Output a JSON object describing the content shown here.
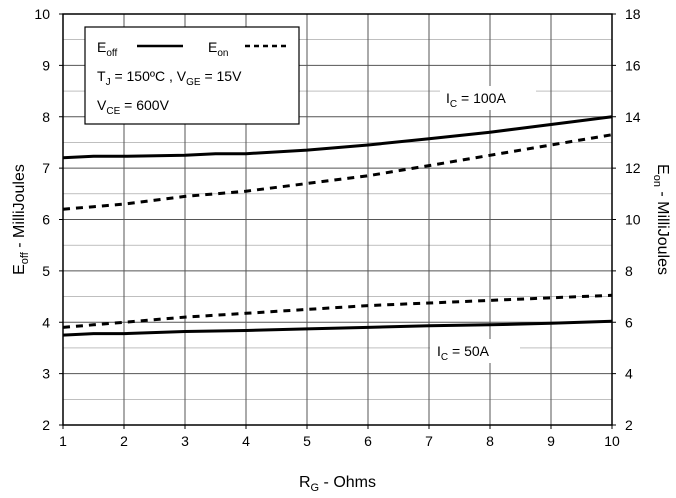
{
  "chart_data": {
    "type": "line",
    "xlabel": "R",
    "xlabel_sub": "G",
    "xlabel_rest": " - Ohms",
    "ylabel_left": "E",
    "ylabel_left_sub": "off",
    "ylabel_left_rest": " - MilliJoules",
    "ylabel_right": "E",
    "ylabel_right_sub": "on",
    "ylabel_right_rest": " - MilliJoules",
    "xlim": [
      1,
      10
    ],
    "ylim_left": [
      2,
      10
    ],
    "ylim_right": [
      2,
      18
    ],
    "x_ticks": [
      "1",
      "2",
      "3",
      "4",
      "5",
      "6",
      "7",
      "8",
      "9",
      "10"
    ],
    "y_left_ticks": [
      "2",
      "3",
      "4",
      "5",
      "6",
      "7",
      "8",
      "9",
      "10"
    ],
    "y_right_ticks": [
      "2",
      "4",
      "6",
      "8",
      "10",
      "12",
      "14",
      "16",
      "18"
    ],
    "grid": true,
    "legend_position": "top-left",
    "legend": {
      "eoff_label": "E",
      "eoff_sub": "off",
      "eon_label": "E",
      "eon_sub": "on",
      "cond1_a": "T",
      "cond1_a_sub": "J",
      "cond1_b": " = 150ºC ,  V",
      "cond1_b_sub": "GE",
      "cond1_c": " = 15V",
      "cond2_a": "V",
      "cond2_a_sub": "CE",
      "cond2_b": " = 600V"
    },
    "annotations": {
      "ic100_a": "I",
      "ic100_sub": "C",
      "ic100_b": " = 100A",
      "ic50_a": "I",
      "ic50_sub": "C",
      "ic50_b": " = 50A"
    },
    "series": [
      {
        "name": "Eoff",
        "axis": "left",
        "style": "solid",
        "group": "IC = 100A",
        "x": [
          1,
          1.5,
          2,
          3,
          3.5,
          4,
          5,
          6,
          7,
          8,
          9,
          10
        ],
        "y": [
          7.2,
          7.23,
          7.23,
          7.25,
          7.28,
          7.28,
          7.35,
          7.45,
          7.57,
          7.7,
          7.85,
          8.0
        ]
      },
      {
        "name": "Eon",
        "axis": "right",
        "style": "dashed",
        "group": "IC = 100A",
        "x": [
          1,
          1.5,
          2,
          3,
          3.5,
          4,
          5,
          6,
          7,
          8,
          9,
          10
        ],
        "y": [
          10.4,
          10.5,
          10.6,
          10.9,
          11.0,
          11.1,
          11.4,
          11.7,
          12.1,
          12.5,
          12.9,
          13.3
        ]
      },
      {
        "name": "Eoff",
        "axis": "left",
        "style": "solid",
        "group": "IC = 50A",
        "x": [
          1,
          1.5,
          2,
          3,
          4,
          5,
          6,
          7,
          8,
          9,
          10
        ],
        "y": [
          3.75,
          3.78,
          3.78,
          3.82,
          3.84,
          3.87,
          3.9,
          3.93,
          3.95,
          3.98,
          4.02
        ]
      },
      {
        "name": "Eon",
        "axis": "right",
        "style": "dashed",
        "group": "IC = 50A",
        "x": [
          1,
          1.5,
          2,
          3,
          4,
          5,
          6,
          7,
          8,
          9,
          10
        ],
        "y": [
          5.8,
          5.9,
          6.0,
          6.2,
          6.35,
          6.5,
          6.65,
          6.75,
          6.85,
          6.95,
          7.05
        ]
      }
    ]
  }
}
